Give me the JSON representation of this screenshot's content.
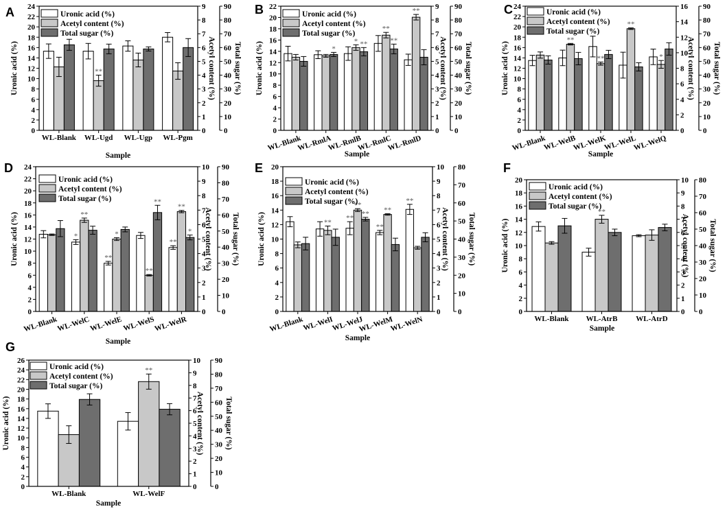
{
  "figure_title": "",
  "colors": {
    "uronic": "#ffffff",
    "acetyl": "#c8c8c8",
    "total": "#6e6e6e",
    "stroke": "#000000",
    "sig": "#555555"
  },
  "chart_data": [
    {
      "panel": "A",
      "type": "bar",
      "title": "",
      "xlabel": "Sample",
      "ylabel": "Uronic acid (%)",
      "y2label": "Acetyl content (%)",
      "y3label": "Total sugar (%)",
      "ylim": [
        0,
        24
      ],
      "y2lim": [
        0,
        9
      ],
      "y3lim": [
        0,
        90
      ],
      "yticks": [
        0,
        2,
        4,
        6,
        8,
        10,
        12,
        14,
        16,
        18,
        20,
        22,
        24
      ],
      "y2ticks": [
        0,
        1,
        2,
        3,
        4,
        5,
        6,
        7,
        8,
        9
      ],
      "y3ticks": [
        0,
        10,
        20,
        30,
        40,
        50,
        60,
        70,
        80,
        90
      ],
      "legend": [
        "Uronic acid (%)",
        "Acetyl content (%)",
        "Total sugar (%)"
      ],
      "categories": [
        "WL-Blank",
        "WL-Ugd",
        "WL-Ugp",
        "WL-Pgm"
      ],
      "series": [
        {
          "name": "Uronic acid (%)",
          "axis": "left",
          "values": [
            15.3,
            15.3,
            16.3,
            18.0
          ],
          "errors": [
            1.4,
            1.5,
            1.0,
            0.9
          ],
          "sig": [
            "",
            "",
            "",
            ""
          ]
        },
        {
          "name": "Acetyl content (%)",
          "axis": "right",
          "values": [
            4.6,
            3.6,
            5.1,
            4.3
          ],
          "errors": [
            0.7,
            0.4,
            0.5,
            0.6
          ],
          "sig": [
            "",
            "**",
            "",
            ""
          ]
        },
        {
          "name": "Total sugar (%)",
          "axis": "right2",
          "values": [
            62,
            59,
            59,
            60
          ],
          "errors": [
            4,
            3.5,
            1.5,
            6.5
          ],
          "sig": [
            "",
            "",
            "",
            ""
          ]
        }
      ]
    },
    {
      "panel": "B",
      "type": "bar",
      "title": "",
      "xlabel": "Sample",
      "ylabel": "Uronic acid (%)",
      "y2label": "Acetyl content (%)",
      "y3label": "Total sugar (%)",
      "ylim": [
        0,
        22
      ],
      "y2lim": [
        0,
        9
      ],
      "y3lim": [
        0,
        90
      ],
      "yticks": [
        0,
        2,
        4,
        6,
        8,
        10,
        12,
        14,
        16,
        18,
        20,
        22
      ],
      "y2ticks": [
        0,
        1,
        2,
        3,
        4,
        5,
        6,
        7,
        8,
        9
      ],
      "y3ticks": [
        0,
        10,
        20,
        30,
        40,
        50,
        60,
        70,
        80,
        90
      ],
      "legend": [
        "Uronic acid (%)",
        "Acetyl content (%)",
        "Total sugar (%)"
      ],
      "categories": [
        "WL-Blank",
        "WL-RmlA",
        "WL-RmlB",
        "WL-RmlC",
        "WL-RmlD"
      ],
      "series": [
        {
          "name": "Uronic acid (%)",
          "axis": "left",
          "values": [
            13.6,
            13.4,
            13.6,
            15.4,
            12.5
          ],
          "errors": [
            1.3,
            0.7,
            1.2,
            1.4,
            1.0
          ],
          "sig": [
            "",
            "",
            "",
            "",
            ""
          ]
        },
        {
          "name": "Acetyl content (%)",
          "axis": "right",
          "values": [
            5.3,
            5.4,
            6.0,
            6.9,
            8.2
          ],
          "errors": [
            0.2,
            0.1,
            0.2,
            0.2,
            0.2
          ],
          "sig": [
            "",
            "",
            "*",
            "**",
            "**"
          ]
        },
        {
          "name": "Total sugar (%)",
          "axis": "right2",
          "values": [
            50,
            55,
            57,
            59,
            53
          ],
          "errors": [
            3.5,
            1.5,
            3,
            3.5,
            5.5
          ],
          "sig": [
            "",
            "*",
            "**",
            "**",
            ""
          ]
        }
      ]
    },
    {
      "panel": "C",
      "type": "bar",
      "title": "",
      "xlabel": "Sample",
      "ylabel": "Uronic acid (%)",
      "y2label": "Acetyl content (%)",
      "y3label": "Total sugar (%)",
      "ylim": [
        0,
        24
      ],
      "y2lim": [
        0,
        16
      ],
      "y3lim": [
        0,
        90
      ],
      "yticks": [
        0,
        2,
        4,
        6,
        8,
        10,
        12,
        14,
        16,
        18,
        20,
        22,
        24
      ],
      "y2ticks": [
        0,
        2,
        4,
        6,
        8,
        10,
        12,
        14,
        16
      ],
      "y3ticks": [
        0,
        10,
        20,
        30,
        40,
        50,
        60,
        70,
        80,
        90
      ],
      "legend": [
        "Uronic acid (%)",
        "Acetyl content (%)",
        "Total sugar (%)"
      ],
      "categories": [
        "WL-Blank",
        "WL-WelB",
        "WL-WelK",
        "WL-WelL",
        "WL-WelQ"
      ],
      "series": [
        {
          "name": "Uronic acid (%)",
          "axis": "left",
          "values": [
            13.5,
            14.0,
            16.2,
            12.6,
            14.2
          ],
          "errors": [
            1.0,
            1.5,
            2.0,
            2.5,
            1.5
          ],
          "sig": [
            "",
            "",
            "",
            "",
            ""
          ]
        },
        {
          "name": "Acetyl content (%)",
          "axis": "right",
          "values": [
            9.7,
            11.1,
            8.6,
            13.1,
            8.5
          ],
          "errors": [
            0.4,
            0.1,
            0.2,
            0.1,
            0.5
          ],
          "sig": [
            "",
            "**",
            "**",
            "**",
            "*"
          ]
        },
        {
          "name": "Total sugar (%)",
          "axis": "right2",
          "values": [
            51,
            52,
            55,
            46,
            59
          ],
          "errors": [
            3,
            4.5,
            3,
            3,
            4.5
          ],
          "sig": [
            "",
            "",
            "",
            "",
            ""
          ]
        }
      ]
    },
    {
      "panel": "D",
      "type": "bar",
      "title": "",
      "xlabel": "Sample",
      "ylabel": "Uronic acid (%)",
      "y2label": "Acetyl content (%)",
      "y3label": "Total sugar (%)",
      "ylim": [
        0,
        24
      ],
      "y2lim": [
        0,
        10
      ],
      "y3lim": [
        0,
        90
      ],
      "yticks": [
        0,
        2,
        4,
        6,
        8,
        10,
        12,
        14,
        16,
        18,
        20,
        22,
        24
      ],
      "y2ticks": [
        0,
        1,
        2,
        3,
        4,
        5,
        6,
        7,
        8,
        9,
        10
      ],
      "y3ticks": [
        0,
        10,
        20,
        30,
        40,
        50,
        60,
        70,
        80,
        90
      ],
      "legend": [
        "Uronic acid (%)",
        "Acetyl content (%)",
        "Total sugar (%)"
      ],
      "categories": [
        "WL-Blank",
        "WL-WelC",
        "WL-WelE",
        "WL-WelS",
        "WL-WelR"
      ],
      "series": [
        {
          "name": "Uronic acid (%)",
          "axis": "left",
          "values": [
            12.8,
            11.5,
            8.0,
            12.6,
            10.6
          ],
          "errors": [
            0.6,
            0.4,
            0.3,
            0.5,
            0.3
          ],
          "sig": [
            "",
            "*",
            "**",
            "",
            "**"
          ]
        },
        {
          "name": "Acetyl content (%)",
          "axis": "right",
          "values": [
            5.3,
            6.3,
            5.0,
            2.5,
            6.9
          ],
          "errors": [
            0.05,
            0.15,
            0.1,
            0.05,
            0.08
          ],
          "sig": [
            "",
            "**",
            "*",
            "**",
            "**"
          ]
        },
        {
          "name": "Total sugar (%)",
          "axis": "right2",
          "values": [
            51.5,
            50.5,
            51,
            61.5,
            46
          ],
          "errors": [
            5,
            2.5,
            1.5,
            4.5,
            1.5
          ],
          "sig": [
            "",
            "",
            "",
            "**",
            "*"
          ]
        }
      ]
    },
    {
      "panel": "E",
      "type": "bar",
      "title": "",
      "xlabel": "Sample",
      "ylabel": "Uronic acid (%)",
      "y2label": "Acetyl content (%)",
      "y3label": "Total sugar (%)",
      "ylim": [
        0,
        20
      ],
      "y2lim": [
        0,
        10
      ],
      "y3lim": [
        0,
        80
      ],
      "yticks": [
        0,
        2,
        4,
        6,
        8,
        10,
        12,
        14,
        16,
        18,
        20
      ],
      "y2ticks": [
        0,
        1,
        2,
        3,
        4,
        5,
        6,
        7,
        8,
        9,
        10
      ],
      "y3ticks": [
        0,
        10,
        20,
        30,
        40,
        50,
        60,
        70,
        80
      ],
      "legend": [
        "Uronic acid (%)",
        "Acetyl content (%)",
        "Total sugar (%)"
      ],
      "categories": [
        "WL-Blank",
        "WL-WelI",
        "WL-WelJ",
        "WL-WelM",
        "WL-WelN"
      ],
      "series": [
        {
          "name": "Uronic acid (%)",
          "axis": "left",
          "values": [
            12.4,
            11.4,
            11.5,
            10.9,
            14.1
          ],
          "errors": [
            0.7,
            1.0,
            0.9,
            0.3,
            0.7
          ],
          "sig": [
            "",
            "",
            "**",
            "**",
            "**"
          ]
        },
        {
          "name": "Acetyl content (%)",
          "axis": "right",
          "values": [
            4.6,
            5.6,
            7.0,
            6.7,
            4.4
          ],
          "errors": [
            0.2,
            0.3,
            0.1,
            0.05,
            0.1
          ],
          "sig": [
            "",
            "**",
            "**",
            "**",
            ""
          ]
        },
        {
          "name": "Total sugar (%)",
          "axis": "right2",
          "values": [
            37.5,
            41,
            51,
            37,
            41
          ],
          "errors": [
            3.5,
            4.5,
            1,
            3.5,
            2.5
          ],
          "sig": [
            "",
            "",
            "**",
            "",
            ""
          ]
        }
      ]
    },
    {
      "panel": "F",
      "type": "bar",
      "title": "",
      "xlabel": "Sample",
      "ylabel": "Uronic acid (%)",
      "y2label": "Acetyl content (%)",
      "y3label": "Total sugar (%)",
      "ylim": [
        0,
        20
      ],
      "y2lim": [
        0,
        10
      ],
      "y3lim": [
        0,
        80
      ],
      "yticks": [
        0,
        2,
        4,
        6,
        8,
        10,
        12,
        14,
        16,
        18,
        20
      ],
      "y2ticks": [
        0,
        1,
        2,
        3,
        4,
        5,
        6,
        7,
        8,
        9,
        10
      ],
      "y3ticks": [
        0,
        10,
        20,
        30,
        40,
        50,
        60,
        70,
        80
      ],
      "legend": [
        "Uronic acid (%)",
        "Acetyl content (%)",
        "Total sugar (%)"
      ],
      "categories": [
        "WL-Blank",
        "WL-AtrB",
        "WL-AtrD"
      ],
      "series": [
        {
          "name": "Uronic acid (%)",
          "axis": "left",
          "values": [
            12.9,
            9.0,
            11.5
          ],
          "errors": [
            0.7,
            0.6,
            0.15
          ],
          "sig": [
            "",
            "",
            ""
          ]
        },
        {
          "name": "Acetyl content (%)",
          "axis": "right",
          "values": [
            5.2,
            7.0,
            5.8
          ],
          "errors": [
            0.1,
            0.3,
            0.4
          ],
          "sig": [
            "",
            "**",
            ""
          ]
        },
        {
          "name": "Total sugar (%)",
          "axis": "right2",
          "values": [
            52,
            48,
            51
          ],
          "errors": [
            4.5,
            2,
            2
          ],
          "sig": [
            "",
            "",
            ""
          ]
        }
      ]
    },
    {
      "panel": "G",
      "type": "bar",
      "title": "",
      "xlabel": "Sample",
      "ylabel": "Uronic acid (%)",
      "y2label": "Acetyl content (%)",
      "y3label": "Total sugar (%)",
      "ylim": [
        0,
        26
      ],
      "y2lim": [
        0,
        10
      ],
      "y3lim": [
        0,
        90
      ],
      "yticks": [
        0,
        2,
        4,
        6,
        8,
        10,
        12,
        14,
        16,
        18,
        20,
        22,
        24,
        26
      ],
      "y2ticks": [
        0,
        1,
        2,
        3,
        4,
        5,
        6,
        7,
        8,
        9,
        10
      ],
      "y3ticks": [
        0,
        10,
        20,
        30,
        40,
        50,
        60,
        70,
        80,
        90
      ],
      "legend": [
        "Uronic acid (%)",
        "Acetyl content (%)",
        "Total sugar (%)"
      ],
      "categories": [
        "WL-Blank",
        "WL-WelF"
      ],
      "series": [
        {
          "name": "Uronic acid (%)",
          "axis": "left",
          "values": [
            15.5,
            13.4
          ],
          "errors": [
            1.5,
            1.8
          ],
          "sig": [
            "",
            ""
          ]
        },
        {
          "name": "Acetyl content (%)",
          "axis": "right",
          "values": [
            4.1,
            8.3
          ],
          "errors": [
            0.7,
            0.6
          ],
          "sig": [
            "",
            "**"
          ]
        },
        {
          "name": "Total sugar (%)",
          "axis": "right2",
          "values": [
            62,
            55
          ],
          "errors": [
            4,
            4
          ],
          "sig": [
            "",
            ""
          ]
        }
      ]
    }
  ]
}
